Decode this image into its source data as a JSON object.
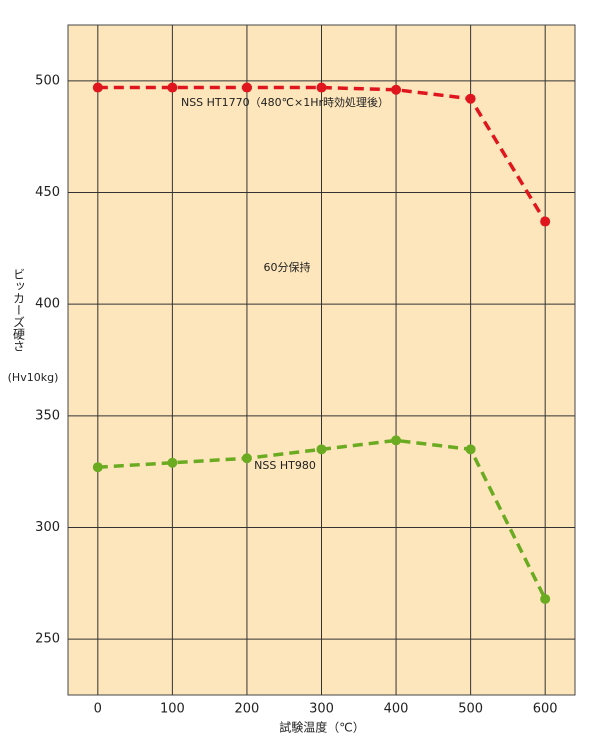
{
  "chart_data": {
    "type": "line",
    "x_label": "試験温度（℃）",
    "y_label": "ビッカーズ硬さ",
    "y_unit": "(Hv10kg)",
    "x": [
      0,
      100,
      200,
      300,
      400,
      500,
      600
    ],
    "series": [
      {
        "name": "NSS HT1770（480℃×1Hr時効処理後）",
        "color": "#e0161e",
        "values": [
          497,
          497,
          497,
          497,
          496,
          492,
          437
        ]
      },
      {
        "name": "NSS HT980",
        "color": "#6aab22",
        "values": [
          327,
          329,
          331,
          335,
          339,
          335,
          268
        ]
      }
    ],
    "annotation": "60分保持",
    "xlim": [
      -40,
      640
    ],
    "xticks": [
      0,
      100,
      200,
      300,
      400,
      500,
      600
    ],
    "ylim": [
      225,
      525
    ],
    "yticks": [
      250,
      300,
      350,
      400,
      450,
      500
    ],
    "grid": true,
    "background": "#fde6bb",
    "dashed": true
  }
}
